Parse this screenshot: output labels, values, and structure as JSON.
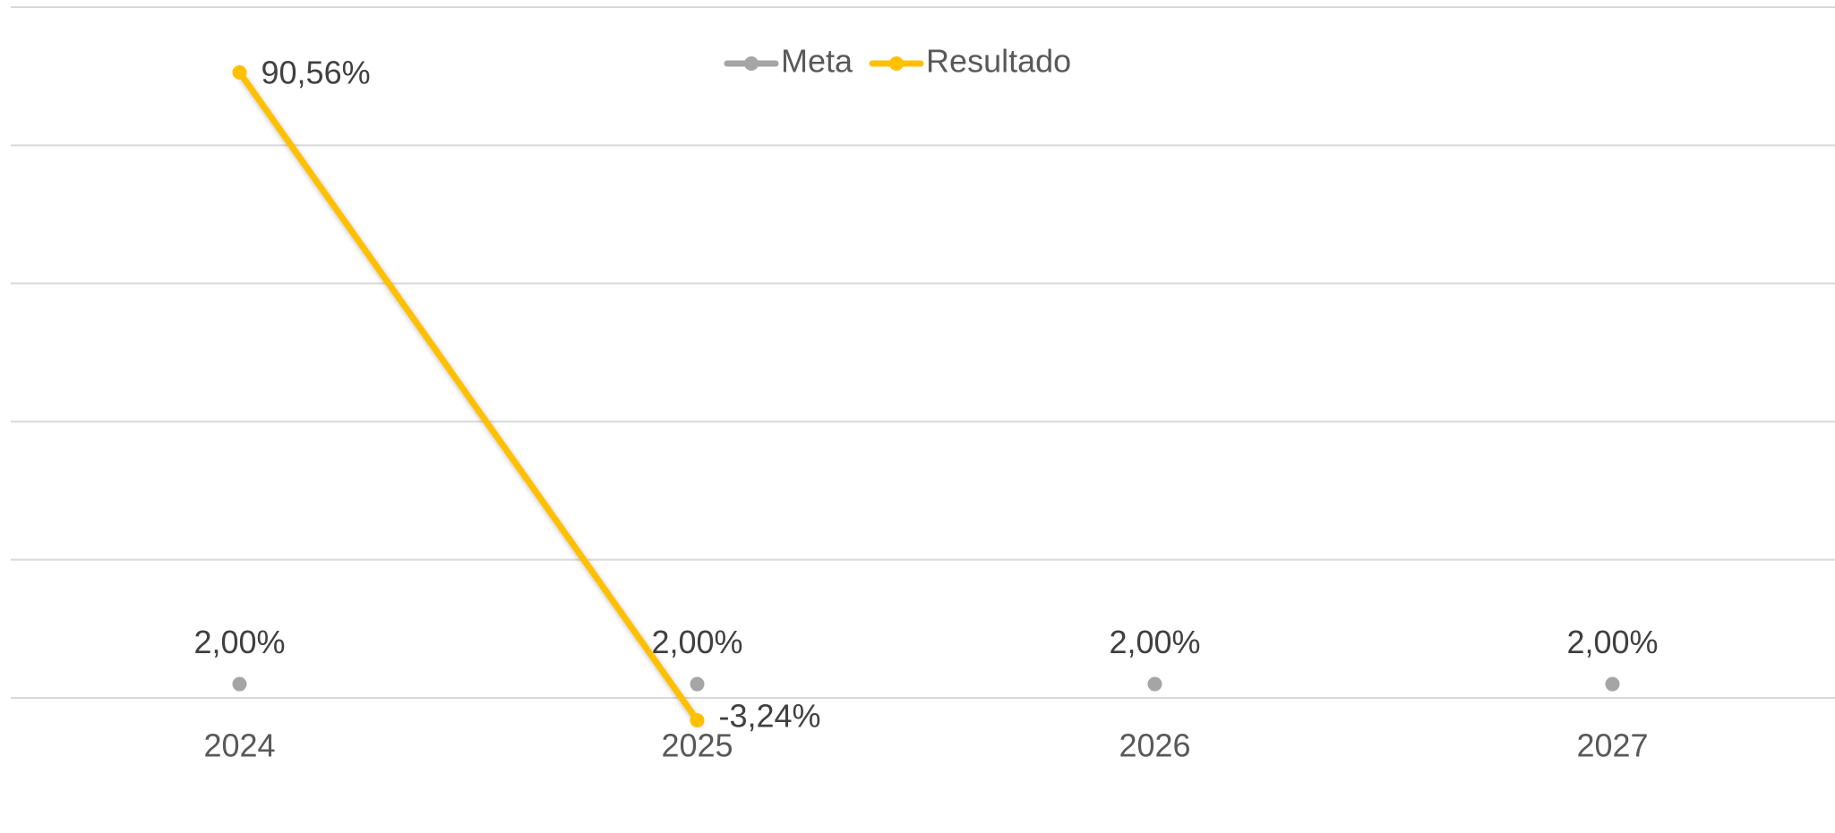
{
  "chart_data": {
    "type": "line",
    "categories": [
      "2024",
      "2025",
      "2026",
      "2027"
    ],
    "series": [
      {
        "name": "Meta",
        "color": "#a5a5a5",
        "values": [
          2,
          2,
          2,
          2
        ],
        "value_labels": [
          "2,00%",
          "2,00%",
          "2,00%",
          "2,00%"
        ]
      },
      {
        "name": "Resultado",
        "color": "#ffc000",
        "values": [
          90.56,
          -3.24,
          null,
          null
        ],
        "value_labels": [
          "90,56%",
          "-3,24%",
          null,
          null
        ]
      }
    ],
    "ylim": [
      -5,
      100
    ],
    "yticks": [
      0,
      20,
      40,
      60,
      80,
      100
    ],
    "grid": true,
    "legend": "top"
  }
}
